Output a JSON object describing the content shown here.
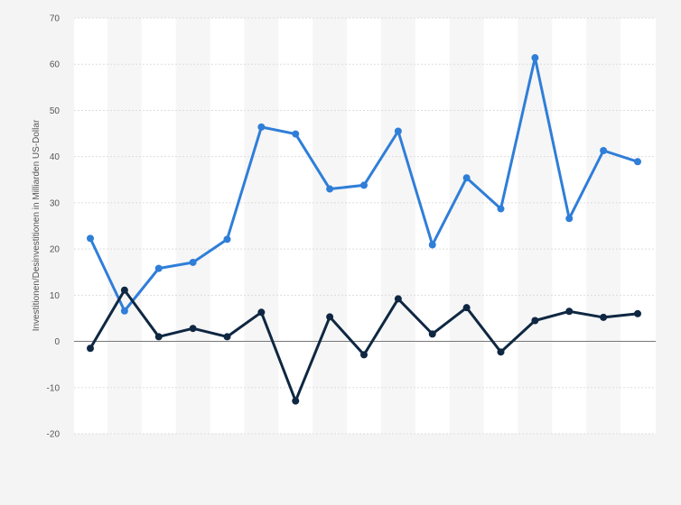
{
  "chart_data": {
    "type": "line",
    "title": "",
    "xlabel": "",
    "ylabel": "Investitionen/Desinvestitionen in Milliarden US-Dollar",
    "ylim": [
      -20,
      70
    ],
    "yticks": [
      70,
      60,
      50,
      40,
      30,
      20,
      10,
      0,
      -10,
      -20
    ],
    "grid": true,
    "x": [
      1,
      2,
      3,
      4,
      5,
      6,
      7,
      8,
      9,
      10,
      11,
      12,
      13,
      14,
      15,
      16,
      17
    ],
    "series": [
      {
        "color": "#2f7ed8",
        "values": [
          22.3,
          6.6,
          15.8,
          17.1,
          22.1,
          46.4,
          44.9,
          33.0,
          33.8,
          45.5,
          20.9,
          35.4,
          28.7,
          61.4,
          26.6,
          41.3,
          38.9
        ]
      },
      {
        "color": "#0f2742",
        "values": [
          -1.5,
          11.1,
          1.0,
          2.8,
          1.0,
          6.3,
          -12.9,
          5.3,
          -2.9,
          9.2,
          1.6,
          7.3,
          -2.3,
          4.5,
          6.5,
          5.2,
          6.0
        ]
      }
    ]
  }
}
